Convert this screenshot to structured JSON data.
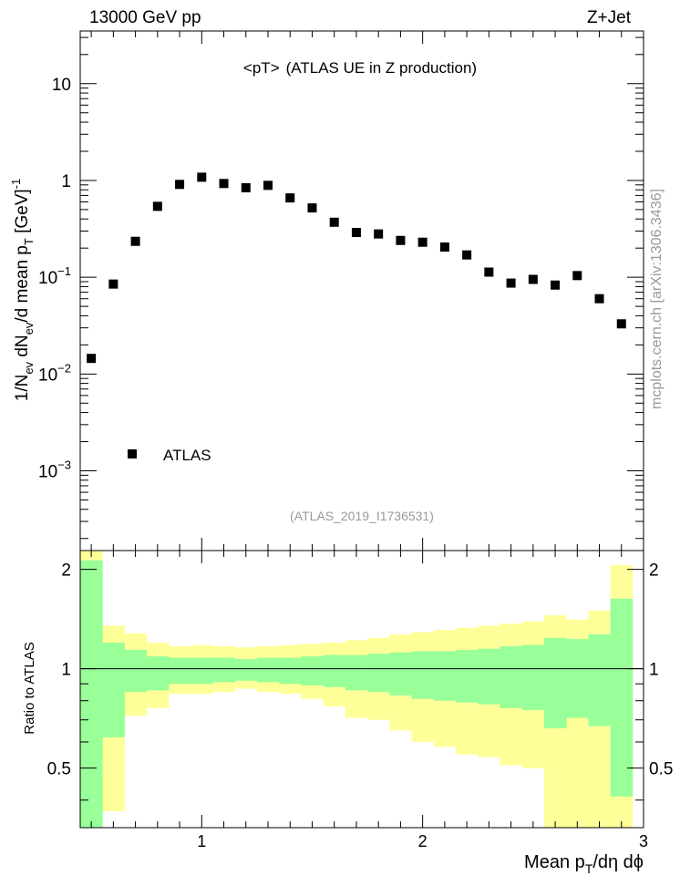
{
  "header": {
    "left": "13000 GeV pp",
    "right": "Z+Jet"
  },
  "watermark": "mcplots.cern.ch [arXiv:1306.3436]",
  "chart_data": [
    {
      "type": "scatter",
      "title": "<pT>",
      "subtitle": "(ATLAS UE in Z production)",
      "analysis_id": "(ATLAS_2019_I1736531)",
      "ylabel": "1/N_ev dN_ev/d mean p_T [GeV]^-1",
      "yscale": "log",
      "xlim": [
        0.45,
        3.0
      ],
      "ylim": [
        0.00015,
        35
      ],
      "y_ticks": [
        {
          "value": 0.001,
          "base": "10",
          "exp": "−3"
        },
        {
          "value": 0.01,
          "base": "10",
          "exp": "−2"
        },
        {
          "value": 0.1,
          "base": "10",
          "exp": "−1"
        },
        {
          "value": 1,
          "label": "1"
        },
        {
          "value": 10,
          "label": "10"
        }
      ],
      "legend": {
        "entry": "ATLAS",
        "placement": "bottom-left",
        "marker": "square",
        "color": "#000000"
      },
      "series": [
        {
          "name": "ATLAS",
          "x": [
            0.5,
            0.6,
            0.7,
            0.8,
            0.9,
            1.0,
            1.1,
            1.2,
            1.3,
            1.4,
            1.5,
            1.6,
            1.7,
            1.8,
            1.9,
            2.0,
            2.1,
            2.2,
            2.3,
            2.4,
            2.5,
            2.6,
            2.7,
            2.8,
            2.9
          ],
          "y": [
            0.0145,
            0.085,
            0.235,
            0.54,
            0.91,
            1.08,
            0.93,
            0.84,
            0.89,
            0.66,
            0.52,
            0.37,
            0.29,
            0.28,
            0.24,
            0.23,
            0.205,
            0.17,
            0.113,
            0.087,
            0.095,
            0.083,
            0.104,
            0.06,
            0.033
          ]
        }
      ]
    },
    {
      "type": "area",
      "ylabel": "Ratio to ATLAS",
      "xlabel": "Mean p_T/dη dϕ",
      "xlim": [
        0.45,
        3.0
      ],
      "ylim": [
        0.33,
        2.28
      ],
      "x_ticks": [
        "1",
        "2",
        "3"
      ],
      "y_ticks": [
        "0.5",
        "1",
        "2"
      ],
      "reference_line": 1,
      "bin_edges": [
        0.45,
        0.55,
        0.65,
        0.75,
        0.85,
        0.95,
        1.05,
        1.15,
        1.25,
        1.35,
        1.45,
        1.55,
        1.65,
        1.75,
        1.85,
        1.95,
        2.05,
        2.15,
        2.25,
        2.35,
        2.45,
        2.55,
        2.65,
        2.75,
        2.85,
        2.95
      ],
      "bands": [
        {
          "name": "outer uncertainty",
          "color": "#ffff99",
          "upper": [
            2.28,
            1.35,
            1.28,
            1.2,
            1.17,
            1.18,
            1.17,
            1.16,
            1.17,
            1.18,
            1.19,
            1.2,
            1.22,
            1.24,
            1.27,
            1.29,
            1.31,
            1.33,
            1.35,
            1.37,
            1.39,
            1.45,
            1.41,
            1.5,
            2.06
          ],
          "lower": [
            0.33,
            0.37,
            0.72,
            0.76,
            0.84,
            0.84,
            0.85,
            0.87,
            0.85,
            0.84,
            0.81,
            0.77,
            0.71,
            0.7,
            0.65,
            0.6,
            0.58,
            0.55,
            0.54,
            0.51,
            0.5,
            0.33,
            0.33,
            0.33,
            0.33
          ]
        },
        {
          "name": "inner uncertainty",
          "color": "#99ff99",
          "upper": [
            2.13,
            1.2,
            1.14,
            1.09,
            1.08,
            1.08,
            1.08,
            1.07,
            1.08,
            1.08,
            1.09,
            1.1,
            1.1,
            1.11,
            1.12,
            1.13,
            1.13,
            1.14,
            1.15,
            1.17,
            1.18,
            1.24,
            1.23,
            1.27,
            1.63
          ],
          "lower": [
            0.33,
            0.62,
            0.85,
            0.86,
            0.9,
            0.9,
            0.91,
            0.92,
            0.91,
            0.9,
            0.89,
            0.88,
            0.86,
            0.85,
            0.83,
            0.81,
            0.8,
            0.79,
            0.78,
            0.76,
            0.75,
            0.66,
            0.71,
            0.67,
            0.41
          ]
        }
      ]
    }
  ]
}
